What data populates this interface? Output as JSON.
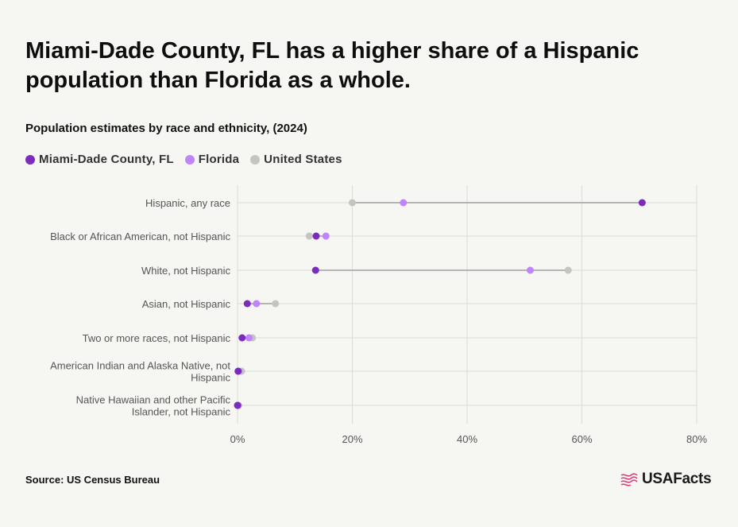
{
  "title": "Miami-Dade County, FL has a higher share of a Hispanic population than Florida as a whole.",
  "subtitle": "Population estimates by race and ethnicity, (2024)",
  "source": "Source: US Census Bureau",
  "logo_text": "USAFacts",
  "colors": {
    "miami": "#7b2cbf",
    "florida": "#c084fc",
    "us": "#c4c4c0",
    "connector": "#b5b5b5",
    "grid": "#dcdcd6"
  },
  "chart_data": {
    "type": "dot",
    "title": "Miami-Dade County, FL has a higher share of a Hispanic population than Florida as a whole.",
    "subtitle": "Population estimates by race and ethnicity, (2024)",
    "categories": [
      [
        "Hispanic, any race"
      ],
      [
        "Black or African American, not Hispanic"
      ],
      [
        "White, not Hispanic"
      ],
      [
        "Asian, not Hispanic"
      ],
      [
        "Two or more races, not Hispanic"
      ],
      [
        "American Indian and Alaska Native, not",
        "Hispanic"
      ],
      [
        "Native Hawaiian and other Pacific",
        "Islander, not Hispanic"
      ]
    ],
    "series": [
      {
        "name": "Miami-Dade County, FL",
        "color": "#7b2cbf",
        "values": [
          70.5,
          13.7,
          13.6,
          1.7,
          0.8,
          0.1,
          0.0
        ]
      },
      {
        "name": "Florida",
        "color": "#c084fc",
        "values": [
          28.9,
          15.4,
          51.0,
          3.3,
          2.0,
          0.2,
          0.1
        ]
      },
      {
        "name": "United States",
        "color": "#c4c4c0",
        "values": [
          20.0,
          12.5,
          57.6,
          6.6,
          2.6,
          0.7,
          0.2
        ]
      }
    ],
    "xlim": [
      0,
      80
    ],
    "xticks": [
      "0%",
      "20%",
      "40%",
      "60%",
      "80%"
    ],
    "xtick_values": [
      0,
      20,
      40,
      60,
      80
    ],
    "legend_position": "top-left",
    "grid": true
  }
}
